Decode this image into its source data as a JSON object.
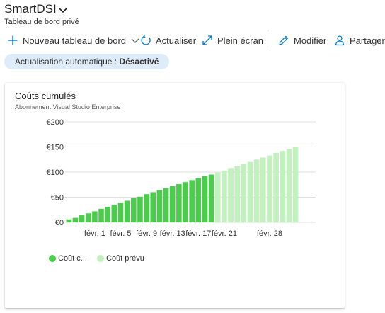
{
  "header": {
    "title": "SmartDSI",
    "subtitle": "Tableau de bord privé",
    "title_chevron_icon": "chevron-down-icon"
  },
  "toolbar": {
    "new_dashboard_label": "Nouveau tableau de bord",
    "refresh_label": "Actualiser",
    "fullscreen_label": "Plein écran",
    "edit_label": "Modifier",
    "share_label": "Partager",
    "icon_color": "#0078d4"
  },
  "auto_refresh": {
    "label": "Actualisation automatique : ",
    "value": "Désactivé"
  },
  "tile": {
    "title": "Coûts cumulés",
    "subtitle": "Abonnement Visual Studio Enterprise",
    "legend": [
      {
        "label": "Coût c...",
        "color": "#4ccc4c"
      },
      {
        "label": "Coût prévu",
        "color": "#c3f0bf"
      }
    ]
  },
  "chart_data": {
    "type": "bar",
    "y_tick_labels": [
      "€0",
      "€50",
      "€100",
      "€150",
      "€200"
    ],
    "y_ticks": [
      0,
      50,
      100,
      150,
      200
    ],
    "ylim": [
      0,
      200
    ],
    "x_tick_labels": [
      {
        "day": 5,
        "label": "févr. 1"
      },
      {
        "day": 9,
        "label": "févr. 5"
      },
      {
        "day": 13,
        "label": "févr. 9"
      },
      {
        "day": 17,
        "label": "févr. 13"
      },
      {
        "day": 21,
        "label": "févr. 17"
      },
      {
        "day": 25,
        "label": "févr. 21"
      },
      {
        "day": 32,
        "label": "févr. 28"
      }
    ],
    "grid": true,
    "series": [
      {
        "name": "Coût c...",
        "color": "#4ccc4c",
        "values": [
          6,
          9,
          14,
          18,
          22,
          27,
          31,
          35,
          39,
          43,
          48,
          51,
          56,
          60,
          64,
          68,
          72,
          76,
          80,
          84,
          88,
          92,
          95
        ]
      },
      {
        "name": "Coût prévu",
        "color": "#c3f0bf",
        "values": [
          99,
          103,
          108,
          112,
          116,
          120,
          125,
          129,
          133,
          138,
          142,
          146,
          150
        ]
      }
    ]
  }
}
